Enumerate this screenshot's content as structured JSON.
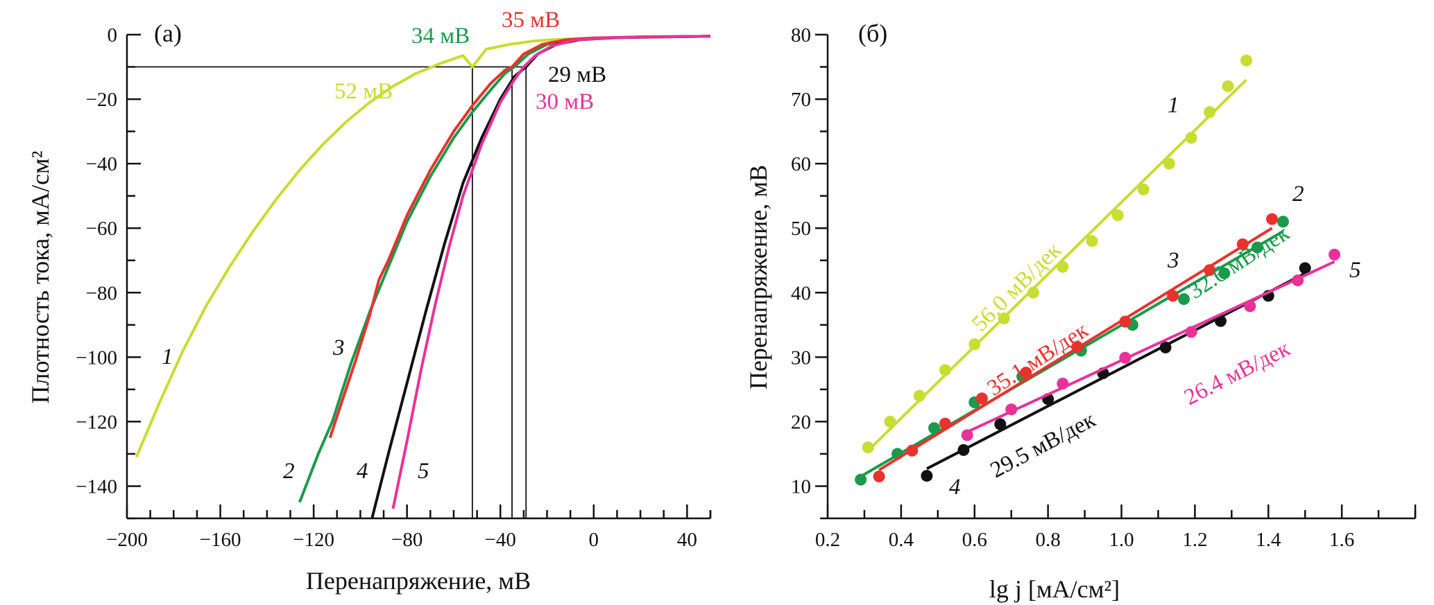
{
  "chart_data": [
    {
      "type": "line",
      "panel_label": "(a)",
      "xlabel": "Перенапряжение, мВ",
      "ylabel": "Плотность тока, мА/см²",
      "xlim": [
        -200,
        50
      ],
      "ylim": [
        -150,
        0
      ],
      "x_ticks": [
        -200,
        -160,
        -120,
        -80,
        -40,
        0,
        40
      ],
      "x_minor_step": 10,
      "y_ticks": [
        0,
        -20,
        -40,
        -60,
        -80,
        -100,
        -120,
        -140
      ],
      "y_minor_step": 10,
      "grid": false,
      "reference_lines": {
        "horizontal_y": -10,
        "vertical_x": [
          -52,
          -35,
          -29
        ]
      },
      "series": [
        {
          "name": "1",
          "color": "#c8dc32",
          "points": [
            [
              -196,
              -131
            ],
            [
              -186,
              -114
            ],
            [
              -176,
              -98
            ],
            [
              -166,
              -84
            ],
            [
              -156,
              -72
            ],
            [
              -146,
              -61
            ],
            [
              -136,
              -51
            ],
            [
              -126,
              -42
            ],
            [
              -116,
              -34
            ],
            [
              -106,
              -27
            ],
            [
              -96,
              -21
            ],
            [
              -86,
              -16
            ],
            [
              -76,
              -12
            ],
            [
              -66,
              -9
            ],
            [
              -56,
              -6.5
            ],
            [
              -52,
              -10
            ],
            [
              -46,
              -4.5
            ],
            [
              -36,
              -3
            ],
            [
              -26,
              -2
            ],
            [
              -16,
              -1.5
            ],
            [
              -6,
              -1.2
            ],
            [
              4,
              -1
            ],
            [
              24,
              -0.8
            ],
            [
              50,
              -0.5
            ]
          ]
        },
        {
          "name": "2",
          "color": "#1a9a4a",
          "points": [
            [
              -126,
              -145
            ],
            [
              -118,
              -130
            ],
            [
              -112,
              -120
            ],
            [
              -104,
              -102
            ],
            [
              -96,
              -86
            ],
            [
              -88,
              -72
            ],
            [
              -80,
              -58
            ],
            [
              -70,
              -44
            ],
            [
              -60,
              -32
            ],
            [
              -52,
              -24
            ],
            [
              -44,
              -17
            ],
            [
              -38,
              -12
            ],
            [
              -34,
              -10
            ],
            [
              -28,
              -6
            ],
            [
              -20,
              -3
            ],
            [
              -10,
              -1.6
            ],
            [
              0,
              -1.1
            ],
            [
              20,
              -0.7
            ],
            [
              50,
              -0.5
            ]
          ]
        },
        {
          "name": "3",
          "color": "#e8322d",
          "points": [
            [
              -113,
              -125
            ],
            [
              -108,
              -114
            ],
            [
              -102,
              -101
            ],
            [
              -96,
              -87
            ],
            [
              -92,
              -76
            ],
            [
              -88,
              -70
            ],
            [
              -80,
              -56
            ],
            [
              -70,
              -42
            ],
            [
              -60,
              -30
            ],
            [
              -52,
              -22
            ],
            [
              -44,
              -15
            ],
            [
              -38,
              -11
            ],
            [
              -35,
              -10
            ],
            [
              -30,
              -6
            ],
            [
              -22,
              -3
            ],
            [
              -12,
              -1.6
            ],
            [
              0,
              -1
            ],
            [
              20,
              -0.7
            ],
            [
              50,
              -0.5
            ]
          ]
        },
        {
          "name": "4",
          "color": "#111111",
          "points": [
            [
              -95,
              -150
            ],
            [
              -88,
              -130
            ],
            [
              -80,
              -108
            ],
            [
              -72,
              -86
            ],
            [
              -64,
              -65
            ],
            [
              -56,
              -46
            ],
            [
              -48,
              -32
            ],
            [
              -40,
              -20
            ],
            [
              -34,
              -13
            ],
            [
              -29,
              -10
            ],
            [
              -24,
              -6
            ],
            [
              -16,
              -3
            ],
            [
              -6,
              -1.6
            ],
            [
              10,
              -0.9
            ],
            [
              50,
              -0.5
            ]
          ]
        },
        {
          "name": "5",
          "color": "#e8329a",
          "points": [
            [
              -86,
              -147
            ],
            [
              -80,
              -126
            ],
            [
              -74,
              -104
            ],
            [
              -68,
              -84
            ],
            [
              -62,
              -66
            ],
            [
              -56,
              -50
            ],
            [
              -48,
              -34
            ],
            [
              -40,
              -21
            ],
            [
              -34,
              -14
            ],
            [
              -30,
              -10
            ],
            [
              -25,
              -6.5
            ],
            [
              -18,
              -3.5
            ],
            [
              -8,
              -1.7
            ],
            [
              8,
              -0.9
            ],
            [
              50,
              -0.5
            ]
          ]
        }
      ],
      "annotations": [
        {
          "text": "52 мВ",
          "color": "#c8dc32"
        },
        {
          "text": "34 мВ",
          "color": "#1a9a4a"
        },
        {
          "text": "35 мВ",
          "color": "#e8322d"
        },
        {
          "text": "29 мВ",
          "color": "#111111"
        },
        {
          "text": "30 мВ",
          "color": "#e8329a"
        }
      ],
      "curve_labels": [
        "1",
        "2",
        "3",
        "4",
        "5"
      ]
    },
    {
      "type": "scatter",
      "panel_label": "(б)",
      "xlabel": "lg j [мА/см²]",
      "ylabel": "Перенапряжение, мВ",
      "xlim": [
        0.2,
        1.8
      ],
      "ylim": [
        5,
        80
      ],
      "x_ticks": [
        0.2,
        0.4,
        0.6,
        0.8,
        1.0,
        1.2,
        1.4,
        1.6
      ],
      "x_tick_labels": [
        "0.2",
        "0.4",
        "0.6",
        "0.8",
        "1.0",
        "1.2",
        "1.4",
        "1.6"
      ],
      "x_minor_step": 0.1,
      "y_ticks": [
        10,
        20,
        30,
        40,
        50,
        60,
        70,
        80
      ],
      "y_minor_step": 5,
      "grid": false,
      "series": [
        {
          "name": "1",
          "color": "#c8dc32",
          "slope_label": "56.0 мВ/дек",
          "points": [
            [
              0.31,
              16
            ],
            [
              0.37,
              20
            ],
            [
              0.45,
              24
            ],
            [
              0.52,
              28
            ],
            [
              0.6,
              32
            ],
            [
              0.68,
              36
            ],
            [
              0.76,
              40
            ],
            [
              0.84,
              44
            ],
            [
              0.92,
              48
            ],
            [
              0.99,
              52
            ],
            [
              1.06,
              56
            ],
            [
              1.13,
              60
            ],
            [
              1.19,
              64
            ],
            [
              1.24,
              68
            ],
            [
              1.29,
              72
            ],
            [
              1.34,
              76
            ]
          ],
          "fit": [
            [
              0.31,
              15.5
            ],
            [
              1.34,
              73
            ]
          ]
        },
        {
          "name": "2",
          "color": "#1a9a4a",
          "slope_label": "32.6 мВ/дек",
          "points": [
            [
              0.29,
              11
            ],
            [
              0.39,
              15
            ],
            [
              0.49,
              19
            ],
            [
              0.6,
              23
            ],
            [
              0.73,
              27
            ],
            [
              0.89,
              31
            ],
            [
              1.03,
              35
            ],
            [
              1.17,
              39
            ],
            [
              1.28,
              43
            ],
            [
              1.37,
              47
            ],
            [
              1.44,
              51
            ]
          ],
          "fit": [
            [
              0.29,
              11.5
            ],
            [
              1.44,
              49.5
            ]
          ]
        },
        {
          "name": "3",
          "color": "#e8322d",
          "slope_label": "35.1 мВ/дек",
          "points": [
            [
              0.34,
              11.5
            ],
            [
              0.43,
              15.5
            ],
            [
              0.52,
              19.7
            ],
            [
              0.62,
              23.6
            ],
            [
              0.74,
              27.6
            ],
            [
              0.88,
              31.6
            ],
            [
              1.01,
              35.5
            ],
            [
              1.14,
              39.5
            ],
            [
              1.24,
              43.5
            ],
            [
              1.33,
              47.5
            ],
            [
              1.41,
              51.4
            ]
          ],
          "fit": [
            [
              0.34,
              12.5
            ],
            [
              1.41,
              50
            ]
          ]
        },
        {
          "name": "4",
          "color": "#111111",
          "slope_label": "29.5 мВ/дек",
          "points": [
            [
              0.47,
              11.6
            ],
            [
              0.57,
              15.6
            ],
            [
              0.67,
              19.6
            ],
            [
              0.8,
              23.5
            ],
            [
              0.95,
              27.5
            ],
            [
              1.12,
              31.5
            ],
            [
              1.27,
              35.6
            ],
            [
              1.4,
              39.5
            ],
            [
              1.5,
              43.8
            ]
          ],
          "fit": [
            [
              0.47,
              12.7
            ],
            [
              1.5,
              43
            ]
          ]
        },
        {
          "name": "5",
          "color": "#e8329a",
          "slope_label": "26.4 мВ/дек",
          "points": [
            [
              0.58,
              17.9
            ],
            [
              0.7,
              21.9
            ],
            [
              0.84,
              25.9
            ],
            [
              1.01,
              29.9
            ],
            [
              1.19,
              33.9
            ],
            [
              1.35,
              37.9
            ],
            [
              1.48,
              41.9
            ],
            [
              1.58,
              45.9
            ]
          ],
          "fit": [
            [
              0.58,
              18.4
            ],
            [
              1.58,
              44.8
            ]
          ]
        }
      ]
    }
  ]
}
